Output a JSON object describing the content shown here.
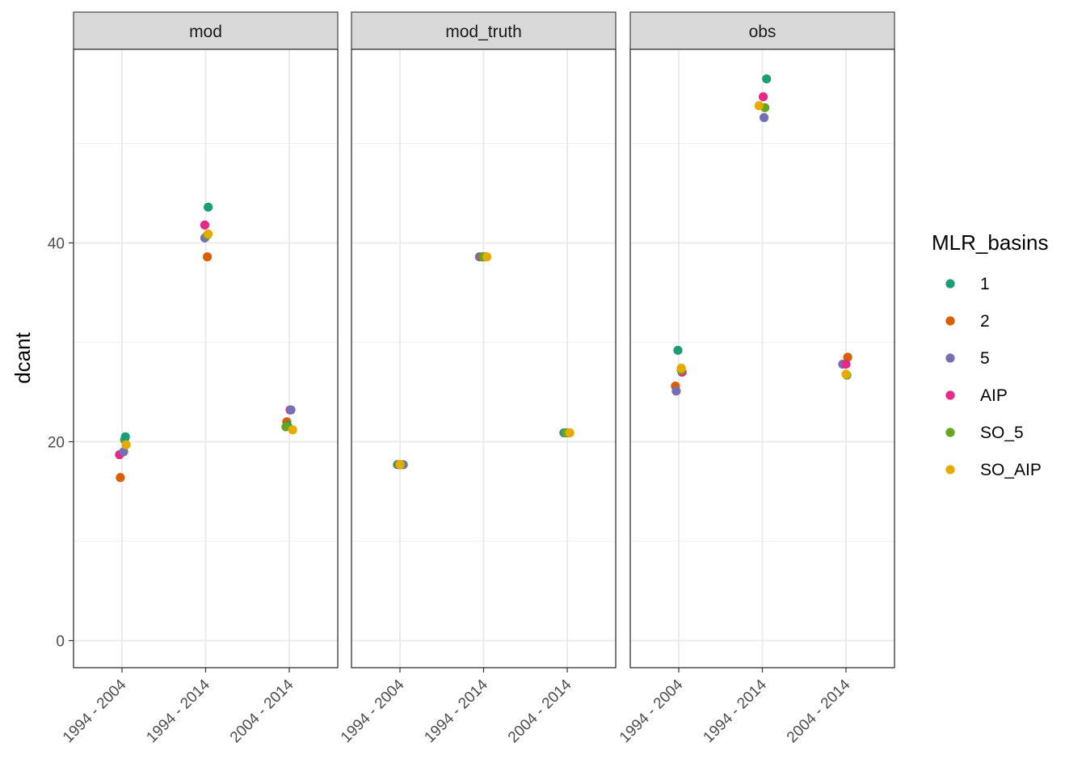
{
  "chart_data": {
    "type": "scatter",
    "ylabel": "dcant",
    "xlabel": "",
    "ylim": [
      -2.5,
      59.5
    ],
    "yticks": [
      0,
      20,
      40
    ],
    "grid": true,
    "legend": {
      "title": "MLR_basins",
      "placement": "right",
      "entries": [
        "1",
        "2",
        "5",
        "AIP",
        "SO_5",
        "SO_AIP"
      ]
    },
    "colors": {
      "1": "#1b9e77",
      "2": "#d95f02",
      "5": "#7570b3",
      "AIP": "#e7298a",
      "SO_5": "#66a61e",
      "SO_AIP": "#e6ab02"
    },
    "categories": [
      "1994 - 2004",
      "1994 - 2014",
      "2004 - 2014"
    ],
    "panels": [
      {
        "name": "mod",
        "points": [
          {
            "x": "1994 - 2004",
            "basin": "AIP",
            "y": 18.7,
            "jitter": -0.03
          },
          {
            "x": "1994 - 2004",
            "basin": "2",
            "y": 16.4,
            "jitter": -0.02
          },
          {
            "x": "1994 - 2004",
            "basin": "5",
            "y": 19.0,
            "jitter": 0.02
          },
          {
            "x": "1994 - 2004",
            "basin": "SO_5",
            "y": 20.2,
            "jitter": 0.03
          },
          {
            "x": "1994 - 2004",
            "basin": "1",
            "y": 20.5,
            "jitter": 0.04
          },
          {
            "x": "1994 - 2004",
            "basin": "SO_AIP",
            "y": 19.7,
            "jitter": 0.05
          },
          {
            "x": "1994 - 2014",
            "basin": "1",
            "y": 43.6,
            "jitter": 0.03
          },
          {
            "x": "1994 - 2014",
            "basin": "AIP",
            "y": 41.8,
            "jitter": -0.01
          },
          {
            "x": "1994 - 2014",
            "basin": "5",
            "y": 40.5,
            "jitter": -0.01
          },
          {
            "x": "1994 - 2014",
            "basin": "SO_5",
            "y": 40.8,
            "jitter": 0.02
          },
          {
            "x": "1994 - 2014",
            "basin": "SO_AIP",
            "y": 40.9,
            "jitter": 0.03
          },
          {
            "x": "1994 - 2014",
            "basin": "2",
            "y": 38.6,
            "jitter": 0.02
          },
          {
            "x": "2004 - 2014",
            "basin": "AIP",
            "y": 23.2,
            "jitter": 0.01
          },
          {
            "x": "2004 - 2014",
            "basin": "5",
            "y": 23.2,
            "jitter": 0.02
          },
          {
            "x": "2004 - 2014",
            "basin": "2",
            "y": 22.0,
            "jitter": -0.03
          },
          {
            "x": "2004 - 2014",
            "basin": "1",
            "y": 21.6,
            "jitter": -0.02
          },
          {
            "x": "2004 - 2014",
            "basin": "SO_5",
            "y": 21.5,
            "jitter": -0.04
          },
          {
            "x": "2004 - 2014",
            "basin": "SO_AIP",
            "y": 21.2,
            "jitter": 0.04
          }
        ]
      },
      {
        "name": "mod_truth",
        "points": [
          {
            "x": "1994 - 2004",
            "basin": "1",
            "y": 17.7,
            "jitter": -0.03
          },
          {
            "x": "1994 - 2004",
            "basin": "2",
            "y": 17.7,
            "jitter": -0.01
          },
          {
            "x": "1994 - 2004",
            "basin": "AIP",
            "y": 17.7,
            "jitter": 0.0
          },
          {
            "x": "1994 - 2004",
            "basin": "5",
            "y": 17.7,
            "jitter": 0.04
          },
          {
            "x": "1994 - 2004",
            "basin": "SO_5",
            "y": 17.7,
            "jitter": 0.01
          },
          {
            "x": "1994 - 2004",
            "basin": "SO_AIP",
            "y": 17.7,
            "jitter": 0.0
          },
          {
            "x": "1994 - 2014",
            "basin": "5",
            "y": 38.6,
            "jitter": -0.05
          },
          {
            "x": "1994 - 2014",
            "basin": "1",
            "y": 38.6,
            "jitter": -0.02
          },
          {
            "x": "1994 - 2014",
            "basin": "2",
            "y": 38.6,
            "jitter": -0.01
          },
          {
            "x": "1994 - 2014",
            "basin": "AIP",
            "y": 38.6,
            "jitter": 0.02
          },
          {
            "x": "1994 - 2014",
            "basin": "SO_5",
            "y": 38.6,
            "jitter": 0.0
          },
          {
            "x": "1994 - 2014",
            "basin": "SO_AIP",
            "y": 38.6,
            "jitter": 0.04
          },
          {
            "x": "2004 - 2014",
            "basin": "1",
            "y": 20.9,
            "jitter": -0.04
          },
          {
            "x": "2004 - 2014",
            "basin": "5",
            "y": 20.9,
            "jitter": -0.02
          },
          {
            "x": "2004 - 2014",
            "basin": "2",
            "y": 20.9,
            "jitter": 0.0
          },
          {
            "x": "2004 - 2014",
            "basin": "AIP",
            "y": 20.9,
            "jitter": 0.02
          },
          {
            "x": "2004 - 2014",
            "basin": "SO_5",
            "y": 20.9,
            "jitter": -0.01
          },
          {
            "x": "2004 - 2014",
            "basin": "SO_AIP",
            "y": 20.9,
            "jitter": 0.03
          }
        ]
      },
      {
        "name": "obs",
        "points": [
          {
            "x": "1994 - 2004",
            "basin": "1",
            "y": 29.2,
            "jitter": -0.01
          },
          {
            "x": "1994 - 2004",
            "basin": "2",
            "y": 25.6,
            "jitter": -0.04
          },
          {
            "x": "1994 - 2004",
            "basin": "5",
            "y": 25.1,
            "jitter": -0.03
          },
          {
            "x": "1994 - 2004",
            "basin": "AIP",
            "y": 27.0,
            "jitter": 0.04
          },
          {
            "x": "1994 - 2004",
            "basin": "SO_5",
            "y": 27.2,
            "jitter": 0.03
          },
          {
            "x": "1994 - 2004",
            "basin": "SO_AIP",
            "y": 27.4,
            "jitter": 0.03
          },
          {
            "x": "1994 - 2014",
            "basin": "1",
            "y": 56.5,
            "jitter": 0.05
          },
          {
            "x": "1994 - 2014",
            "basin": "AIP",
            "y": 54.7,
            "jitter": 0.01
          },
          {
            "x": "1994 - 2014",
            "basin": "SO_5",
            "y": 53.6,
            "jitter": 0.03
          },
          {
            "x": "1994 - 2014",
            "basin": "SO_AIP",
            "y": 53.8,
            "jitter": -0.04
          },
          {
            "x": "1994 - 2014",
            "basin": "5",
            "y": 52.6,
            "jitter": 0.02
          },
          {
            "x": "2004 - 2014",
            "basin": "2",
            "y": 28.5,
            "jitter": 0.02
          },
          {
            "x": "2004 - 2014",
            "basin": "5",
            "y": 27.8,
            "jitter": -0.04
          },
          {
            "x": "2004 - 2014",
            "basin": "AIP",
            "y": 27.8,
            "jitter": 0.0
          },
          {
            "x": "2004 - 2014",
            "basin": "SO_5",
            "y": 26.7,
            "jitter": 0.01
          },
          {
            "x": "2004 - 2014",
            "basin": "SO_AIP",
            "y": 26.8,
            "jitter": 0.0
          }
        ]
      }
    ]
  }
}
